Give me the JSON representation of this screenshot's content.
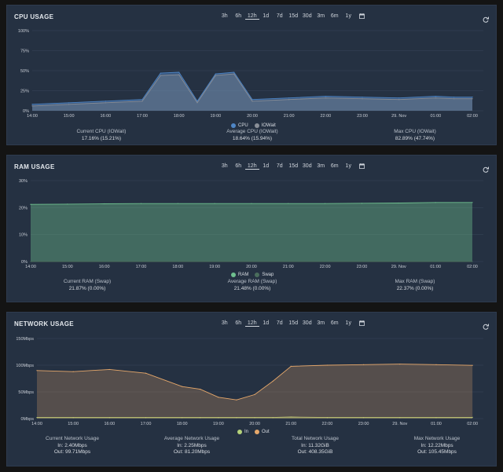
{
  "time_ranges": [
    "3h",
    "6h",
    "12h",
    "1d",
    "7d",
    "15d",
    "30d",
    "3m",
    "6m",
    "1y"
  ],
  "active_range": "12h",
  "icons": {
    "calendar": "calendar-icon",
    "refresh": "refresh-icon"
  },
  "colors": {
    "cpu": "#4f86c6",
    "iowait": "#8a8f98",
    "ram": "#6fc08f",
    "swap": "#4a6d5c",
    "net_in": "#b5d27a",
    "net_out": "#e6a86b"
  },
  "x_ticks": [
    "14:00",
    "15:00",
    "16:00",
    "17:00",
    "18:00",
    "19:00",
    "20:00",
    "21:00",
    "22:00",
    "23:00",
    "29. Nov",
    "01:00",
    "02:00"
  ],
  "cpu": {
    "title": "CPU USAGE",
    "y_ticks": [
      "0%",
      "25%",
      "50%",
      "75%",
      "100%"
    ],
    "legend": [
      "CPU",
      "IOWait"
    ],
    "stats": [
      {
        "label": "Current CPU (IOWait)",
        "value": "17.16% (15.21%)"
      },
      {
        "label": "Average CPU (IOWait)",
        "value": "18.64% (15.94%)"
      },
      {
        "label": "Max CPU (IOWait)",
        "value": "82.89% (47.74%)"
      }
    ]
  },
  "ram": {
    "title": "RAM USAGE",
    "y_ticks": [
      "0%",
      "10%",
      "20%",
      "30%"
    ],
    "legend": [
      "RAM",
      "Swap"
    ],
    "stats": [
      {
        "label": "Current RAM (Swap)",
        "value": "21.87% (0.00%)"
      },
      {
        "label": "Average RAM (Swap)",
        "value": "21.48% (0.00%)"
      },
      {
        "label": "Max RAM (Swap)",
        "value": "22.37% (0.00%)"
      }
    ]
  },
  "network": {
    "title": "NETWORK USAGE",
    "y_ticks": [
      "0Mbps",
      "50Mbps",
      "100Mbps",
      "150Mbps"
    ],
    "legend": [
      "In",
      "Out"
    ],
    "stats": [
      {
        "label": "Current Network Usage",
        "in": "In: 2.40Mbps",
        "out": "Out: 99.71Mbps"
      },
      {
        "label": "Average Network Usage",
        "in": "In: 2.25Mbps",
        "out": "Out: 81.20Mbps"
      },
      {
        "label": "Total Network Usage",
        "in": "In: 11.32GiB",
        "out": "Out: 408.35GiB"
      },
      {
        "label": "Max Network Usage",
        "in": "In: 12.22Mbps",
        "out": "Out: 105.45Mbps"
      }
    ]
  },
  "chart_data": [
    {
      "type": "area",
      "title": "CPU USAGE",
      "x": [
        "14:00",
        "15:00",
        "16:00",
        "17:00",
        "17:30",
        "18:00",
        "18:30",
        "19:00",
        "19:30",
        "20:00",
        "21:00",
        "22:00",
        "23:00",
        "29. Nov",
        "01:00",
        "01:30",
        "02:00"
      ],
      "ylim": [
        0,
        100
      ],
      "series": [
        {
          "name": "CPU",
          "values": [
            8,
            10,
            12,
            14,
            47,
            48,
            12,
            46,
            48,
            14,
            16,
            18,
            17,
            16,
            18,
            17,
            17
          ]
        },
        {
          "name": "IOWait",
          "values": [
            6,
            8,
            10,
            12,
            44,
            45,
            10,
            44,
            46,
            12,
            14,
            16,
            15,
            14,
            16,
            15,
            15
          ]
        }
      ]
    },
    {
      "type": "area",
      "title": "RAM USAGE",
      "x": [
        "14:00",
        "15:00",
        "16:00",
        "17:00",
        "18:00",
        "19:00",
        "20:00",
        "21:00",
        "22:00",
        "23:00",
        "29. Nov",
        "01:00",
        "02:00"
      ],
      "ylim": [
        0,
        30
      ],
      "series": [
        {
          "name": "RAM",
          "values": [
            21.2,
            21.3,
            21.4,
            21.5,
            21.5,
            21.5,
            21.5,
            21.5,
            21.5,
            21.6,
            21.7,
            21.9,
            21.9
          ]
        },
        {
          "name": "Swap",
          "values": [
            0,
            0,
            0,
            0,
            0,
            0,
            0,
            0,
            0,
            0,
            0,
            0,
            0
          ]
        }
      ]
    },
    {
      "type": "area",
      "title": "NETWORK USAGE",
      "x": [
        "14:00",
        "15:00",
        "16:00",
        "17:00",
        "18:00",
        "18:30",
        "19:00",
        "19:30",
        "20:00",
        "20:30",
        "21:00",
        "22:00",
        "23:00",
        "29. Nov",
        "01:00",
        "02:00"
      ],
      "ylim": [
        0,
        150
      ],
      "series": [
        {
          "name": "In",
          "values": [
            2,
            2,
            2,
            2,
            2,
            2,
            2,
            2,
            2,
            2,
            3,
            2,
            2,
            2,
            2,
            2.4
          ]
        },
        {
          "name": "Out",
          "values": [
            90,
            88,
            92,
            85,
            60,
            55,
            40,
            35,
            45,
            70,
            98,
            100,
            101,
            102,
            101,
            99.71
          ]
        }
      ]
    }
  ]
}
